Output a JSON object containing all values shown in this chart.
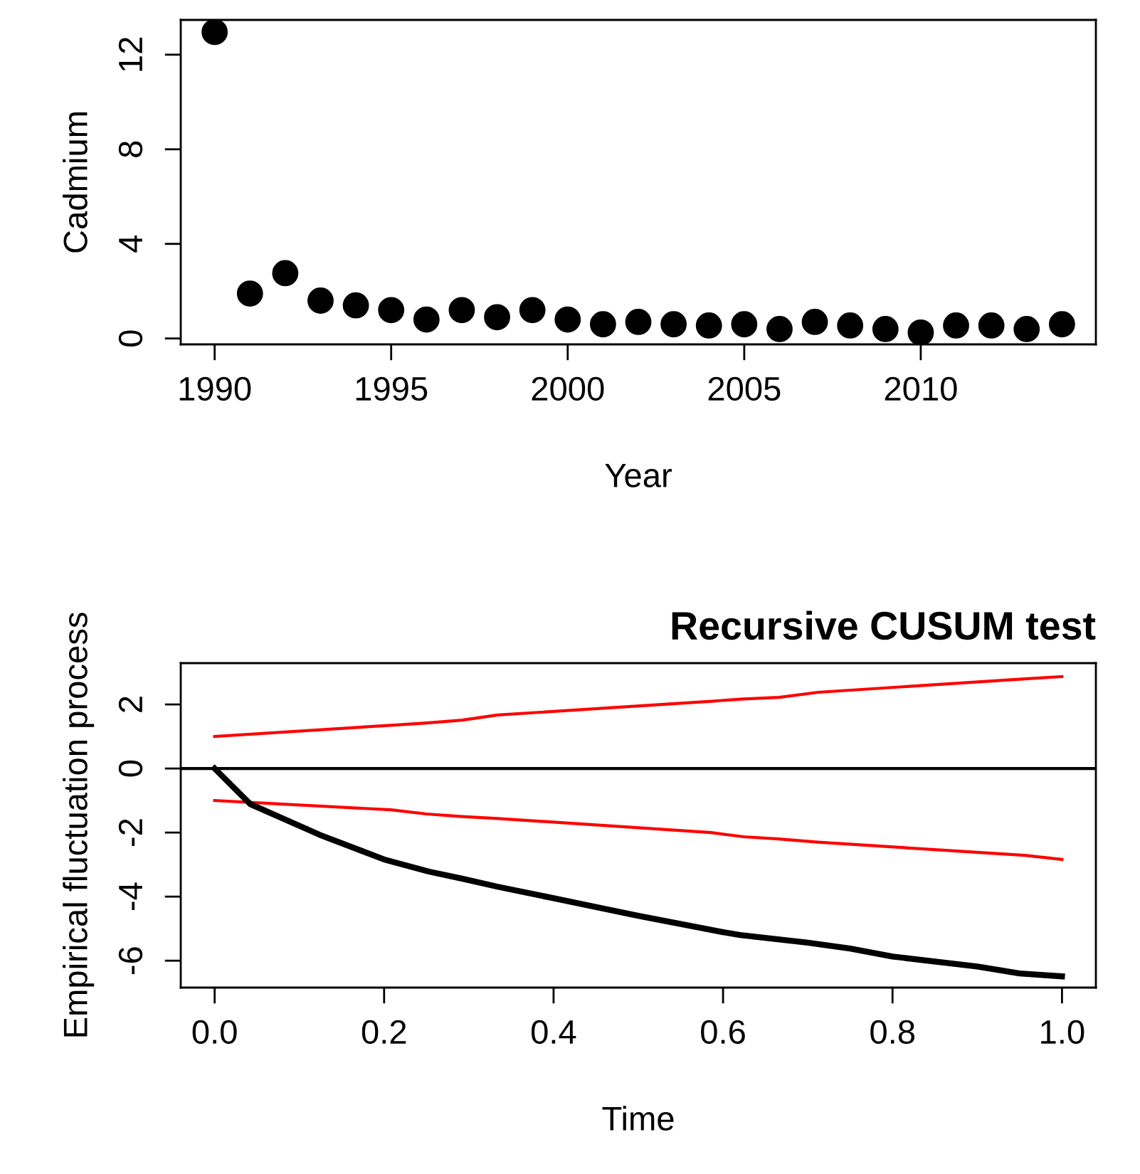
{
  "chart_data": [
    {
      "type": "scatter",
      "xlabel": "Year",
      "ylabel": "Cadmium",
      "marker": "circle",
      "grid": false,
      "legend": false,
      "x": [
        1990,
        1991,
        1992,
        1993,
        1994,
        1995,
        1996,
        1997,
        1998,
        1999,
        2000,
        2001,
        2002,
        2003,
        2004,
        2005,
        2006,
        2007,
        2008,
        2009,
        2010,
        2011,
        2012,
        2013,
        2014
      ],
      "series": [
        {
          "color": "#000000",
          "values": [
            12.96,
            1.9,
            2.76,
            1.6,
            1.4,
            1.2,
            0.8,
            1.2,
            0.9,
            1.2,
            0.8,
            0.6,
            0.7,
            0.6,
            0.55,
            0.6,
            0.4,
            0.7,
            0.55,
            0.4,
            0.25,
            0.55,
            0.55,
            0.4,
            0.6
          ]
        }
      ],
      "xlim": [
        1989.04,
        2014.96
      ],
      "xticks": [
        1990,
        1995,
        2000,
        2005,
        2010
      ],
      "ylim": [
        -0.25,
        13.47
      ],
      "yticks": [
        0,
        4,
        8,
        12
      ]
    },
    {
      "type": "line",
      "title": "Recursive CUSUM test",
      "xlabel": "Time",
      "ylabel": "Empirical fluctuation process",
      "grid": false,
      "legend": false,
      "marker": "none",
      "line_style": "solid",
      "series": [
        {
          "color": "#000000",
          "x": [
            0,
            0.042,
            0.124,
            0.2,
            0.253,
            0.292,
            0.334,
            0.4,
            0.5,
            0.6,
            0.62,
            0.7,
            0.75,
            0.8,
            0.9,
            0.95,
            1.0
          ],
          "values": [
            0,
            -1.11,
            -2.07,
            -2.84,
            -3.22,
            -3.44,
            -3.69,
            -4.05,
            -4.6,
            -5.11,
            -5.2,
            -5.44,
            -5.62,
            -5.87,
            -6.18,
            -6.4,
            -6.49
          ]
        },
        {
          "color": "#ff0000",
          "x": [
            0,
            0.208,
            0.25,
            0.292,
            0.334,
            0.586,
            0.624,
            0.666,
            0.712,
            0.956,
            1.0
          ],
          "values": [
            1.0,
            1.35,
            1.42,
            1.51,
            1.67,
            2.1,
            2.17,
            2.22,
            2.38,
            2.8,
            2.87
          ]
        },
        {
          "color": "#ff0000",
          "x": [
            0,
            0.208,
            0.25,
            0.292,
            0.334,
            0.586,
            0.624,
            0.666,
            0.712,
            0.956,
            1.0
          ],
          "values": [
            -1.0,
            -1.29,
            -1.42,
            -1.5,
            -1.56,
            -2.0,
            -2.13,
            -2.2,
            -2.3,
            -2.71,
            -2.84
          ]
        }
      ],
      "ref_lines": [
        {
          "axis": "y",
          "value": 0,
          "color": "#000000"
        }
      ],
      "xlim": [
        -0.04,
        1.04
      ],
      "xticks": [
        {
          "value": 0,
          "label": "0.0"
        },
        0.2,
        0.4,
        0.6,
        0.8,
        {
          "value": 1,
          "label": "1.0"
        }
      ],
      "ylim": [
        -6.84,
        3.29
      ],
      "yticks": [
        -6,
        -4,
        -2,
        0,
        2
      ]
    }
  ]
}
